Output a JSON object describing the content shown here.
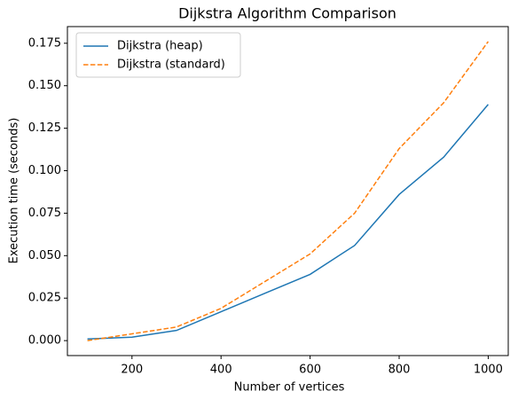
{
  "chart_data": {
    "type": "line",
    "title": "Dijkstra Algorithm Comparison",
    "xlabel": "Number of vertices",
    "ylabel": "Execution time (seconds)",
    "x": [
      100,
      200,
      300,
      400,
      500,
      600,
      700,
      800,
      900,
      1000
    ],
    "series": [
      {
        "name": "Dijkstra (heap)",
        "color": "#1f77b4",
        "linestyle": "solid",
        "values": [
          0.001,
          0.002,
          0.006,
          0.017,
          0.028,
          0.039,
          0.056,
          0.086,
          0.108,
          0.139
        ]
      },
      {
        "name": "Dijkstra (standard)",
        "color": "#ff7f0e",
        "linestyle": "dashed",
        "values": [
          0.0,
          0.004,
          0.008,
          0.019,
          0.035,
          0.051,
          0.075,
          0.113,
          0.14,
          0.176
        ]
      }
    ],
    "xlim": [
      55,
      1045
    ],
    "xticks": [
      200,
      400,
      600,
      800,
      1000
    ],
    "ylim": [
      -0.0088,
      0.1848
    ],
    "yticks": [
      {
        "value": 0,
        "label": "0.000"
      },
      {
        "value": 0.025,
        "label": "0.025"
      },
      {
        "value": 0.05,
        "label": "0.050"
      },
      {
        "value": 0.075,
        "label": "0.075"
      },
      {
        "value": 0.1,
        "label": "0.100"
      },
      {
        "value": 0.125,
        "label": "0.125"
      },
      {
        "value": 0.15,
        "label": "0.150"
      },
      {
        "value": 0.175,
        "label": "0.175"
      }
    ],
    "grid": false,
    "legend": "upper left"
  }
}
